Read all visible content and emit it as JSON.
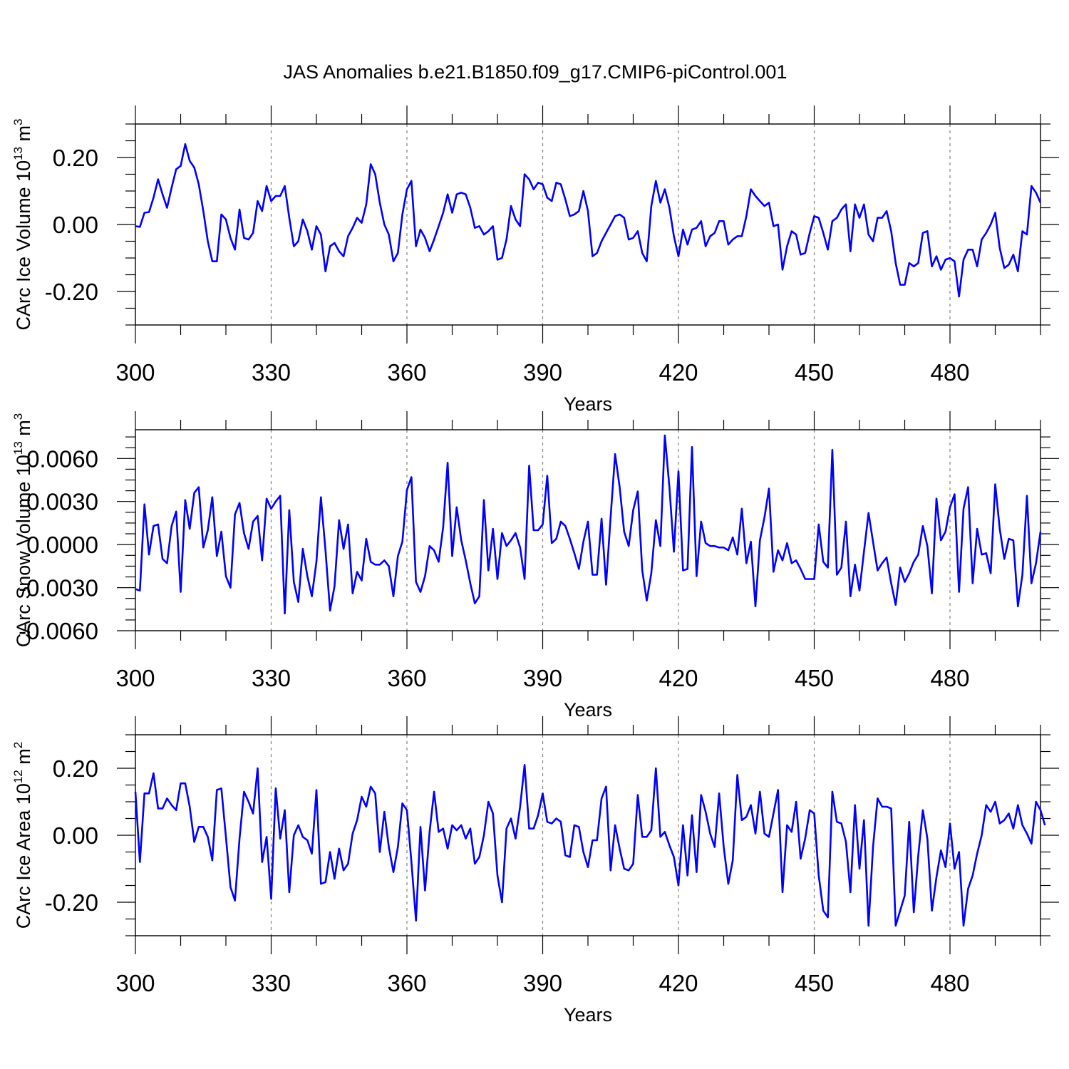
{
  "page": {
    "title": "JAS Anomalies b.e21.B1850.f09_g17.CMIP6-piControl.001",
    "colors": {
      "line": "#0000ff",
      "axis": "#000000",
      "grid": "#808080",
      "background": "#ffffff"
    }
  },
  "chart_data": [
    {
      "type": "line",
      "name": "ice-volume",
      "ylabel": {
        "base": "CArc Ice Volume 10",
        "exp": "13",
        "unit": " m",
        "unit_exp": "3"
      },
      "xlabel": "Years",
      "xlim": [
        300,
        500
      ],
      "ylim": [
        -0.3,
        0.3
      ],
      "x_ticks": [
        300,
        330,
        360,
        390,
        420,
        450,
        480
      ],
      "x_tick_labels": [
        "300",
        "330",
        "360",
        "390",
        "420",
        "450",
        "480"
      ],
      "y_ticks": [
        -0.2,
        0.0,
        0.2
      ],
      "y_tick_labels": [
        "-0.20",
        "0.00",
        "0.20"
      ],
      "x_start": 300,
      "values": [
        -0.005,
        -0.007,
        0.035,
        0.037,
        0.08,
        0.135,
        0.09,
        0.05,
        0.11,
        0.165,
        0.175,
        0.24,
        0.19,
        0.17,
        0.12,
        0.04,
        -0.05,
        -0.11,
        -0.11,
        0.03,
        0.015,
        -0.04,
        -0.075,
        0.045,
        -0.04,
        -0.045,
        -0.025,
        0.07,
        0.04,
        0.115,
        0.07,
        0.085,
        0.085,
        0.115,
        0.02,
        -0.065,
        -0.05,
        0.015,
        -0.02,
        -0.075,
        -0.005,
        -0.03,
        -0.14,
        -0.065,
        -0.055,
        -0.08,
        -0.095,
        -0.035,
        -0.01,
        0.02,
        0.005,
        0.06,
        0.18,
        0.15,
        0.065,
        0.0,
        -0.03,
        -0.11,
        -0.085,
        0.03,
        0.105,
        0.13,
        -0.065,
        -0.015,
        -0.04,
        -0.08,
        -0.045,
        -0.005,
        0.035,
        0.09,
        0.035,
        0.09,
        0.095,
        0.09,
        0.05,
        -0.01,
        -0.005,
        -0.03,
        -0.02,
        -0.005,
        -0.105,
        -0.1,
        -0.045,
        0.055,
        0.015,
        -0.005,
        0.15,
        0.135,
        0.105,
        0.125,
        0.12,
        0.08,
        0.07,
        0.125,
        0.12,
        0.075,
        0.025,
        0.03,
        0.04,
        0.1,
        0.04,
        -0.095,
        -0.085,
        -0.05,
        -0.025,
        0.0,
        0.025,
        0.03,
        0.02,
        -0.045,
        -0.04,
        -0.02,
        -0.085,
        -0.11,
        0.055,
        0.13,
        0.065,
        0.105,
        0.05,
        -0.035,
        -0.095,
        -0.015,
        -0.06,
        -0.015,
        -0.01,
        0.01,
        -0.065,
        -0.035,
        -0.025,
        0.01,
        0.01,
        -0.06,
        -0.045,
        -0.035,
        -0.035,
        0.025,
        0.105,
        0.085,
        0.07,
        0.055,
        0.065,
        -0.005,
        0.0,
        -0.135,
        -0.065,
        -0.02,
        -0.03,
        -0.09,
        -0.085,
        -0.025,
        0.025,
        0.02,
        -0.025,
        -0.075,
        0.01,
        0.02,
        0.045,
        0.06,
        -0.08,
        0.06,
        0.02,
        0.06,
        -0.03,
        -0.05,
        0.02,
        0.02,
        0.04,
        -0.02,
        -0.115,
        -0.18,
        -0.18,
        -0.115,
        -0.125,
        -0.115,
        -0.025,
        -0.02,
        -0.125,
        -0.095,
        -0.135,
        -0.105,
        -0.1,
        -0.11,
        -0.215,
        -0.105,
        -0.075,
        -0.075,
        -0.125,
        -0.045,
        -0.025,
        0.0,
        0.035,
        -0.07,
        -0.13,
        -0.12,
        -0.09,
        -0.14,
        -0.02,
        -0.03,
        0.115,
        0.095,
        0.065
      ]
    },
    {
      "type": "line",
      "name": "snow-volume",
      "ylabel": {
        "base": "CArc Snow Volume 10",
        "exp": "13",
        "unit": " m",
        "unit_exp": "3"
      },
      "xlabel": "Years",
      "xlim": [
        300,
        500
      ],
      "ylim": [
        -0.006,
        0.008
      ],
      "x_ticks": [
        300,
        330,
        360,
        390,
        420,
        450,
        480
      ],
      "x_tick_labels": [
        "300",
        "330",
        "360",
        "390",
        "420",
        "450",
        "480"
      ],
      "y_ticks": [
        -0.006,
        -0.003,
        0.0,
        0.003,
        0.006
      ],
      "y_tick_labels": [
        "-0.0060",
        "-0.0030",
        "0.0000",
        "0.0030",
        "0.0060"
      ],
      "x_start": 300,
      "values": [
        -0.0031,
        -0.0032,
        0.0028,
        -0.0007,
        0.0013,
        0.0014,
        -0.001,
        -0.0013,
        0.0013,
        0.0023,
        -0.0033,
        0.0031,
        0.0011,
        0.0036,
        0.004,
        -0.0002,
        0.001,
        0.0033,
        -0.0008,
        0.0009,
        -0.0022,
        -0.003,
        0.0021,
        0.0029,
        0.0008,
        -0.0003,
        0.0016,
        0.002,
        -0.0011,
        0.0032,
        0.0025,
        0.003,
        0.0034,
        -0.0048,
        0.0024,
        -0.0026,
        -0.004,
        -0.0003,
        -0.0022,
        -0.0036,
        -0.0012,
        0.0033,
        -0.0004,
        -0.0046,
        -0.0029,
        0.0017,
        -0.0003,
        0.0014,
        -0.0034,
        -0.0019,
        -0.0025,
        0.0004,
        -0.0012,
        -0.0014,
        -0.0014,
        -0.0011,
        -0.0015,
        -0.0036,
        -0.0008,
        0.0002,
        0.0038,
        0.0047,
        -0.0026,
        -0.0033,
        -0.0022,
        -0.0001,
        -0.0004,
        -0.0012,
        0.0012,
        0.0057,
        -0.0008,
        0.0026,
        0.0003,
        -0.0011,
        -0.0027,
        -0.0041,
        -0.0036,
        0.0031,
        -0.0018,
        0.0011,
        -0.0024,
        0.0008,
        -0.0001,
        0.0003,
        0.0008,
        -0.0002,
        -0.0024,
        0.0055,
        0.001,
        0.001,
        0.0014,
        0.0048,
        0.0001,
        0.0004,
        0.0016,
        0.0013,
        0.0004,
        -0.0006,
        -0.0017,
        0.0002,
        0.0016,
        -0.0021,
        -0.0021,
        0.0018,
        -0.0028,
        0.0019,
        0.0063,
        0.004,
        0.0009,
        -0.0001,
        0.0024,
        0.0037,
        -0.0018,
        -0.0039,
        -0.002,
        0.0017,
        -0.0001,
        0.0076,
        0.004,
        -0.0005,
        0.0051,
        -0.0018,
        -0.0017,
        0.0068,
        -0.0022,
        0.0016,
        0.0001,
        -0.0001,
        -0.0001,
        -0.0002,
        -0.0002,
        -0.0004,
        0.0005,
        -0.0007,
        0.0025,
        -0.0013,
        0.0002,
        -0.0043,
        0.0003,
        0.0019,
        0.0039,
        -0.0019,
        -0.0004,
        -0.0011,
        0.0001,
        -0.0013,
        -0.0011,
        -0.0017,
        -0.0024,
        -0.0024,
        -0.0024,
        0.0014,
        -0.0012,
        -0.0016,
        0.0066,
        -0.0021,
        -0.0016,
        0.0016,
        -0.0036,
        -0.0014,
        -0.0032,
        -0.0005,
        0.0022,
        0.0002,
        -0.0018,
        -0.0013,
        -0.0009,
        -0.0027,
        -0.0042,
        -0.0016,
        -0.0026,
        -0.002,
        -0.0012,
        -0.0007,
        0.0013,
        -0.0001,
        -0.0034,
        0.0032,
        0.0003,
        0.0009,
        0.0026,
        0.0035,
        -0.0033,
        0.0025,
        0.004,
        -0.0027,
        0.0011,
        -0.0007,
        -0.0006,
        -0.002,
        0.0042,
        0.0011,
        -0.001,
        0.0004,
        0.0003,
        -0.0043,
        -0.0021,
        0.0034,
        -0.0027,
        -0.0013,
        0.0009
      ]
    },
    {
      "type": "line",
      "name": "ice-area",
      "ylabel": {
        "base": "CArc Ice Area 10",
        "exp": "12",
        "unit": " m",
        "unit_exp": "2"
      },
      "xlabel": "Years",
      "xlim": [
        300,
        500
      ],
      "ylim": [
        -0.3,
        0.3
      ],
      "x_ticks": [
        300,
        330,
        360,
        390,
        420,
        450,
        480
      ],
      "x_tick_labels": [
        "300",
        "330",
        "360",
        "390",
        "420",
        "450",
        "480"
      ],
      "y_ticks": [
        -0.2,
        0.0,
        0.2
      ],
      "y_tick_labels": [
        "-0.20",
        "0.00",
        "0.20"
      ],
      "x_start": 300,
      "values": [
        0.13,
        -0.08,
        0.125,
        0.125,
        0.185,
        0.08,
        0.08,
        0.11,
        0.09,
        0.075,
        0.155,
        0.155,
        0.085,
        -0.02,
        0.025,
        0.025,
        -0.005,
        -0.075,
        0.135,
        0.14,
        -0.005,
        -0.155,
        -0.195,
        -0.01,
        0.13,
        0.1,
        0.065,
        0.2,
        -0.08,
        -0.005,
        -0.19,
        0.14,
        -0.01,
        0.075,
        -0.17,
        0.0,
        0.03,
        -0.005,
        -0.015,
        -0.055,
        0.135,
        -0.145,
        -0.14,
        -0.05,
        -0.13,
        -0.04,
        -0.105,
        -0.085,
        0.005,
        0.045,
        0.115,
        0.085,
        0.145,
        0.125,
        -0.05,
        0.07,
        -0.035,
        -0.11,
        -0.035,
        0.095,
        0.075,
        -0.08,
        -0.255,
        0.025,
        -0.165,
        0.01,
        0.13,
        0.01,
        0.02,
        -0.04,
        0.03,
        0.015,
        0.03,
        -0.01,
        0.02,
        -0.085,
        -0.065,
        0.0,
        0.1,
        0.065,
        -0.12,
        -0.2,
        0.02,
        0.05,
        -0.01,
        0.085,
        0.21,
        0.02,
        0.02,
        0.06,
        0.125,
        0.04,
        0.035,
        0.05,
        0.04,
        -0.06,
        -0.065,
        0.03,
        0.025,
        -0.05,
        -0.095,
        -0.015,
        -0.015,
        0.11,
        0.145,
        -0.105,
        0.03,
        -0.04,
        -0.1,
        -0.105,
        -0.085,
        0.12,
        -0.005,
        -0.005,
        0.015,
        0.2,
        -0.005,
        0.01,
        -0.03,
        -0.065,
        -0.15,
        0.03,
        -0.12,
        0.06,
        -0.11,
        0.12,
        0.07,
        0.005,
        -0.035,
        0.125,
        -0.035,
        -0.145,
        -0.075,
        0.18,
        0.045,
        0.055,
        0.09,
        0.005,
        0.13,
        0.005,
        -0.005,
        0.065,
        0.135,
        -0.17,
        0.03,
        0.01,
        0.1,
        -0.07,
        -0.01,
        0.075,
        0.065,
        -0.12,
        -0.225,
        -0.245,
        0.13,
        0.04,
        0.035,
        -0.02,
        -0.17,
        0.09,
        -0.1,
        0.045,
        -0.27,
        -0.035,
        0.11,
        0.085,
        0.085,
        0.08,
        -0.27,
        -0.225,
        -0.18,
        0.04,
        -0.23,
        -0.06,
        0.075,
        -0.01,
        -0.225,
        -0.125,
        -0.045,
        -0.095,
        0.035,
        -0.1,
        -0.05,
        -0.27,
        -0.16,
        -0.12,
        -0.055,
        0.0,
        0.09,
        0.07,
        0.1,
        0.035,
        0.045,
        0.065,
        0.02,
        0.09,
        0.03,
        0.005,
        -0.025,
        0.1,
        0.075,
        0.03
      ]
    }
  ],
  "panels": [
    {
      "x_axis_label": "Years"
    },
    {
      "x_axis_label": "Years"
    },
    {
      "x_axis_label": "Years"
    }
  ]
}
